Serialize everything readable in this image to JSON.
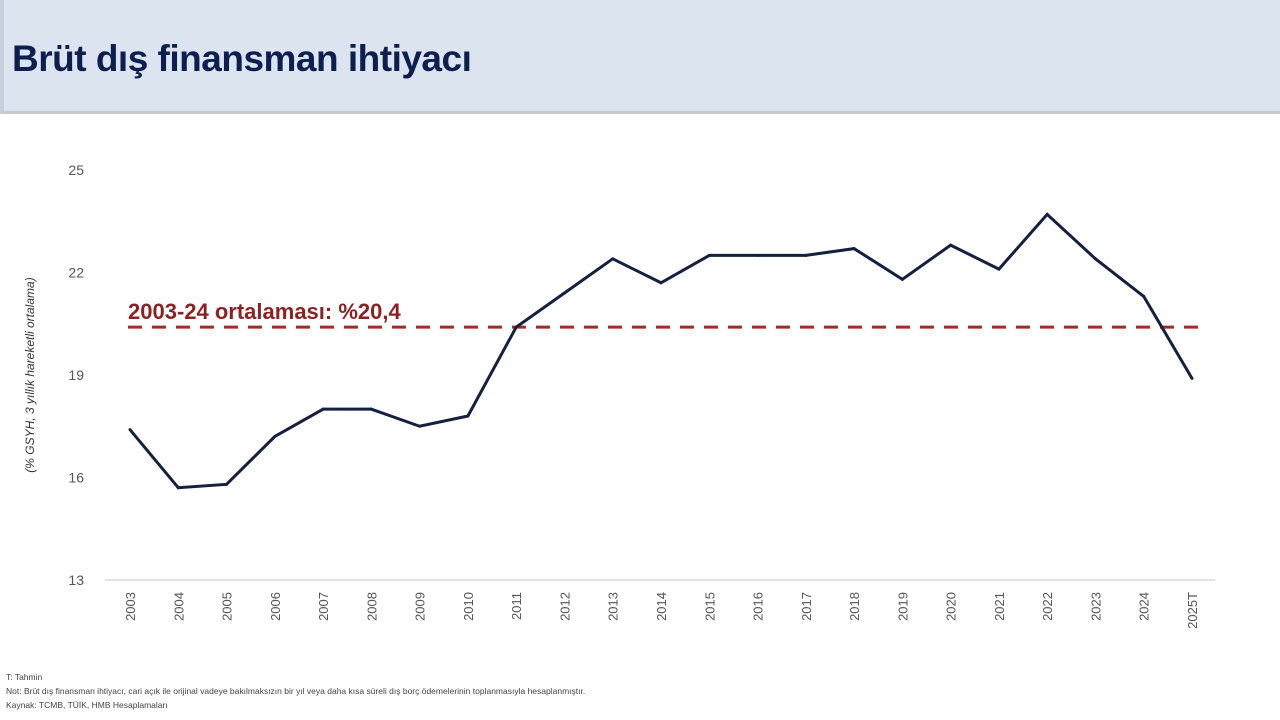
{
  "header": {
    "title": "Brüt dış finansman ihtiyacı"
  },
  "chart_data": {
    "type": "line",
    "title": "Brüt dış finansman ihtiyacı",
    "ylabel": "(% GSYH, 3 yıllık hareketli ortalama)",
    "xlabel": "",
    "ylim": [
      13,
      25
    ],
    "yticks": [
      13,
      16,
      19,
      22,
      25
    ],
    "grid": false,
    "categories": [
      "2003",
      "2004",
      "2005",
      "2006",
      "2007",
      "2008",
      "2009",
      "2010",
      "2011",
      "2012",
      "2013",
      "2014",
      "2015",
      "2016",
      "2017",
      "2018",
      "2019",
      "2020",
      "2021",
      "2022",
      "2023",
      "2024",
      "2025T"
    ],
    "series": [
      {
        "name": "Brüt dış finansman ihtiyacı",
        "color": "#13203f",
        "values": [
          17.4,
          15.7,
          15.8,
          17.2,
          18.0,
          18.0,
          17.5,
          17.8,
          20.4,
          21.4,
          22.4,
          21.7,
          22.5,
          22.5,
          22.5,
          22.7,
          21.8,
          22.8,
          22.1,
          23.7,
          22.4,
          21.3,
          18.9
        ]
      }
    ],
    "reference_line": {
      "value": 20.4,
      "label": "2003-24 ortalaması: %20,4",
      "color": "#a52a2a"
    }
  },
  "notes": {
    "forecast": "T: Tahmin",
    "note": "Not: Brüt dış finansman ihtiyacı, cari açık ile orijinal vadeye bakılmaksızın bir yıl veya daha kısa süreli dış borç ödemelerinin toplanmasıyla hesaplanmıştır.",
    "source": "Kaynak: TCMB, TÜİK, HMB Hesaplamaları"
  }
}
